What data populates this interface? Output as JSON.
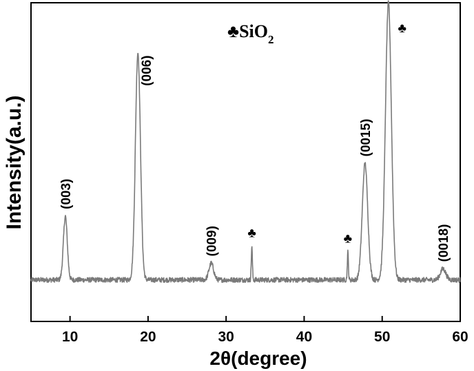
{
  "chart_data": {
    "type": "line",
    "xlabel": "2θ(degree)",
    "ylabel": "Intensity(a.u.)",
    "xlim": [
      5,
      60
    ],
    "ylim": [
      -0.15,
      1.0
    ],
    "x_ticks": [
      10,
      20,
      30,
      40,
      50,
      60
    ],
    "y_ticks": [],
    "grid": false,
    "legend": {
      "symbol": "♣",
      "text": "SiO",
      "subscript": "2",
      "placement": "top-center"
    },
    "baseline": 0,
    "peaks": [
      {
        "x": 9.4,
        "height": 0.23,
        "width": 0.25,
        "label": "(003)"
      },
      {
        "x": 18.7,
        "height": 0.82,
        "width": 0.32,
        "label": "(006)"
      },
      {
        "x": 28.1,
        "height": 0.06,
        "width": 0.3,
        "label": "(009)"
      },
      {
        "x": 33.3,
        "height": 0.12,
        "width": 0.07,
        "label": "♣"
      },
      {
        "x": 45.6,
        "height": 0.1,
        "width": 0.07,
        "label": "♣"
      },
      {
        "x": 47.8,
        "height": 0.42,
        "width": 0.35,
        "label": "(0015)"
      },
      {
        "x": 50.8,
        "height": 1.0,
        "width": 0.38,
        "label": "♣"
      },
      {
        "x": 57.8,
        "height": 0.04,
        "width": 0.35,
        "label": "(0018)"
      }
    ]
  }
}
